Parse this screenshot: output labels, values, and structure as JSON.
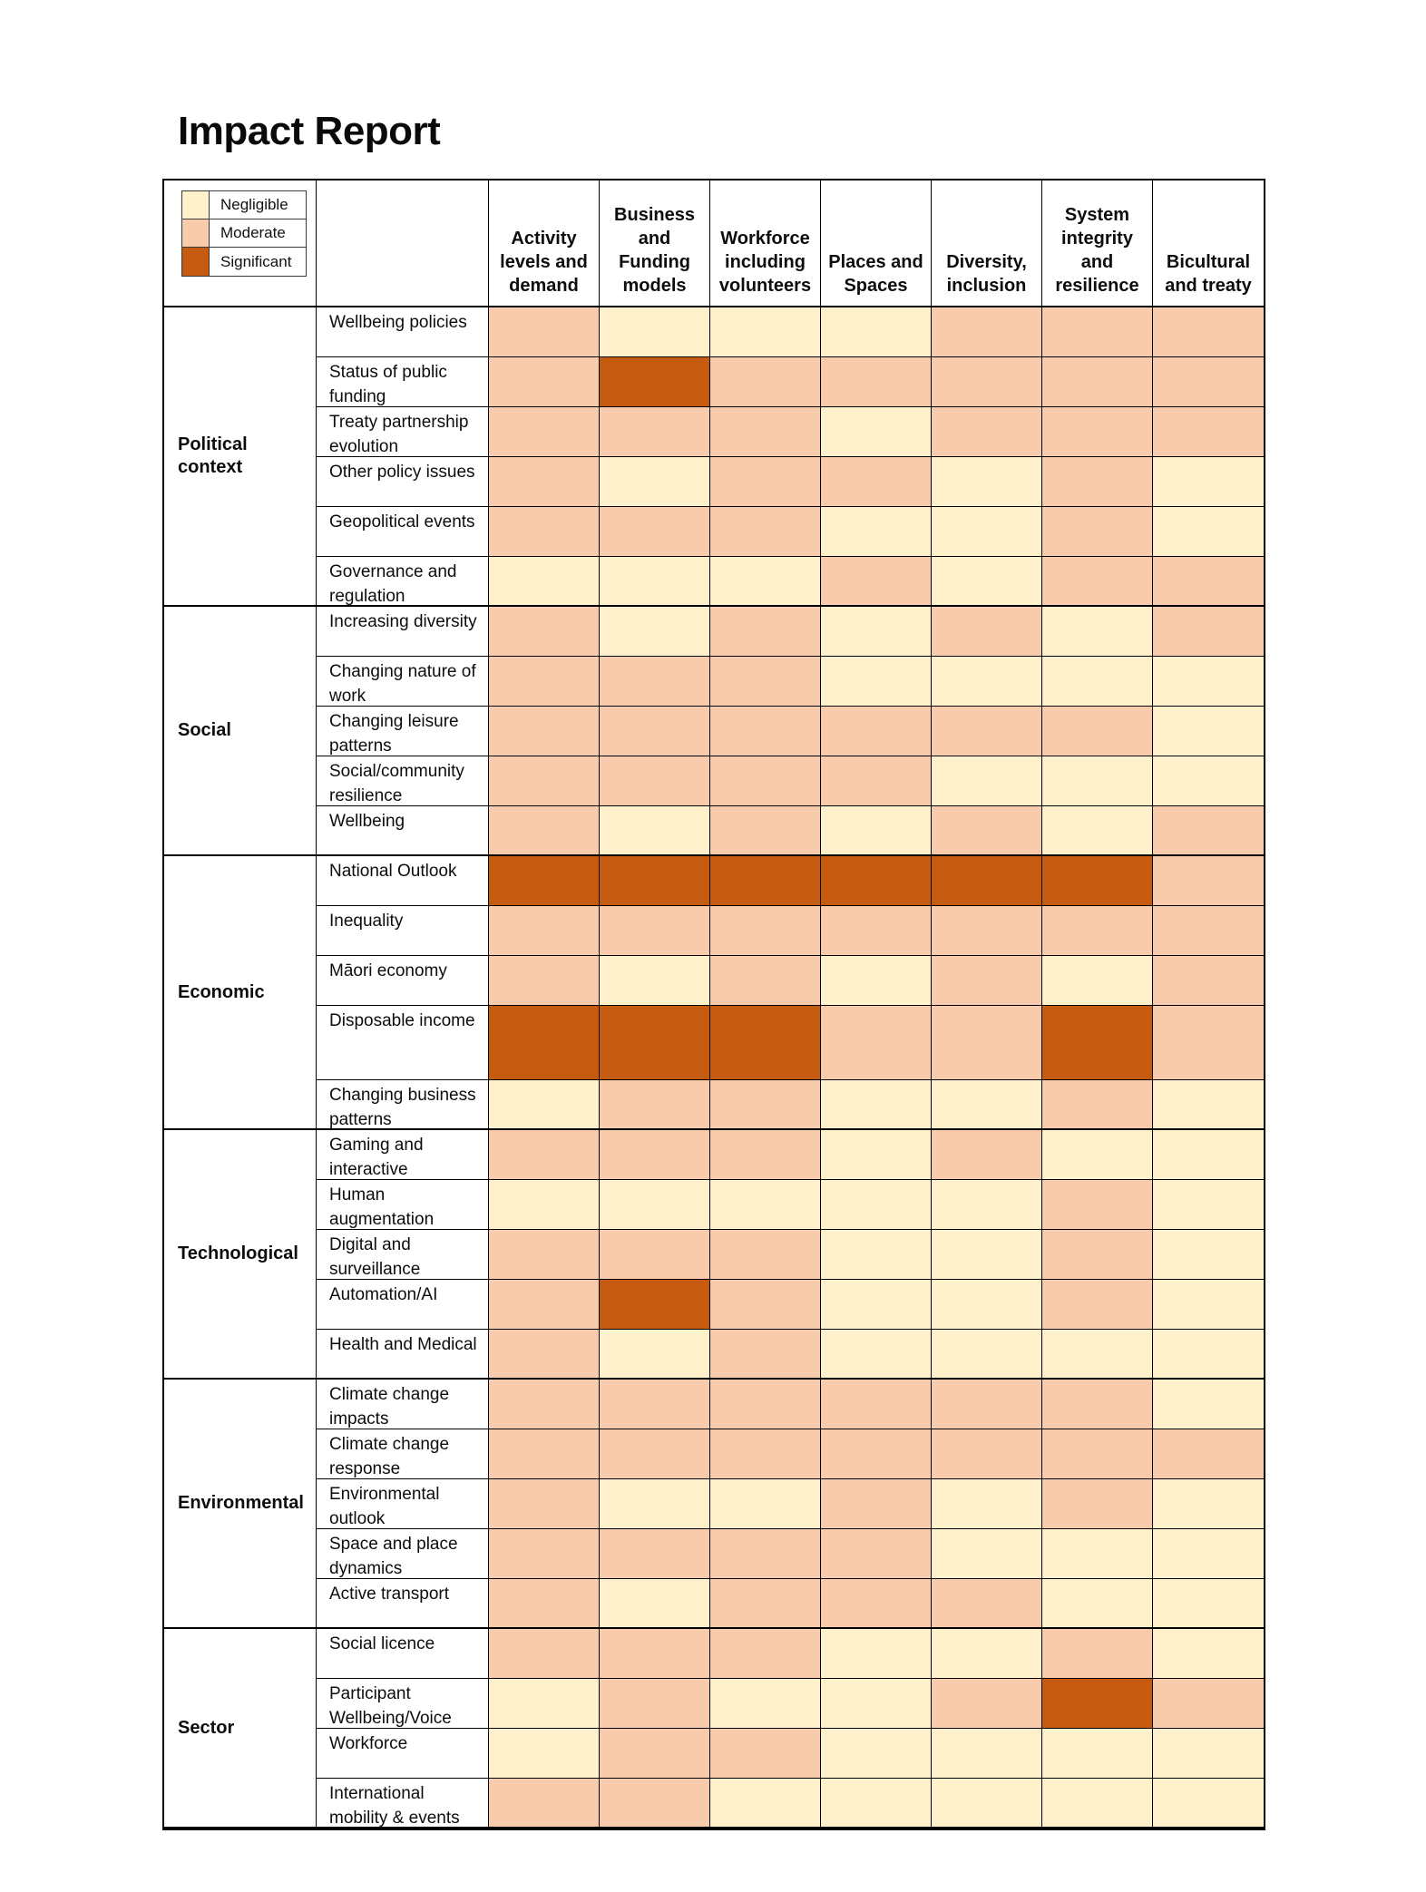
{
  "title": "Impact Report",
  "legend": {
    "items": [
      {
        "label": "Negligible",
        "color": "#FFF1CC"
      },
      {
        "label": "Moderate",
        "color": "#F8CBAD"
      },
      {
        "label": "Significant",
        "color": "#C55A11"
      }
    ]
  },
  "chart_data": {
    "type": "heatmap",
    "title": "Impact Report",
    "legend_position": "top-left",
    "scale": [
      "Negligible",
      "Moderate",
      "Significant"
    ],
    "palette": {
      "Negligible": "#FFF1CC",
      "Moderate": "#F8CBAD",
      "Significant": "#C55A11"
    },
    "columns": [
      "Activity levels and demand",
      "Business and Funding models",
      "Workforce including volunteers",
      "Places and Spaces",
      "Diversity, inclusion",
      "System integrity and resilience",
      "Bicultural and treaty"
    ],
    "row_groups": [
      {
        "label": "Political context",
        "rows": [
          {
            "label": "Wellbeing policies",
            "values": [
              "Moderate",
              "Negligible",
              "Negligible",
              "Negligible",
              "Moderate",
              "Moderate",
              "Moderate"
            ]
          },
          {
            "label": "Status of public funding",
            "values": [
              "Moderate",
              "Significant",
              "Moderate",
              "Moderate",
              "Moderate",
              "Moderate",
              "Moderate"
            ]
          },
          {
            "label": "Treaty partnership evolution",
            "values": [
              "Moderate",
              "Moderate",
              "Moderate",
              "Negligible",
              "Moderate",
              "Moderate",
              "Moderate"
            ]
          },
          {
            "label": "Other policy issues",
            "values": [
              "Moderate",
              "Negligible",
              "Moderate",
              "Moderate",
              "Negligible",
              "Moderate",
              "Negligible"
            ]
          },
          {
            "label": "Geopolitical events",
            "values": [
              "Moderate",
              "Moderate",
              "Moderate",
              "Negligible",
              "Negligible",
              "Moderate",
              "Negligible"
            ]
          },
          {
            "label": "Governance and regulation",
            "values": [
              "Negligible",
              "Negligible",
              "Negligible",
              "Moderate",
              "Negligible",
              "Moderate",
              "Moderate"
            ]
          }
        ]
      },
      {
        "label": "Social",
        "rows": [
          {
            "label": "Increasing diversity",
            "values": [
              "Moderate",
              "Negligible",
              "Moderate",
              "Negligible",
              "Moderate",
              "Negligible",
              "Moderate"
            ]
          },
          {
            "label": "Changing nature of work",
            "values": [
              "Moderate",
              "Moderate",
              "Moderate",
              "Negligible",
              "Negligible",
              "Negligible",
              "Negligible"
            ]
          },
          {
            "label": "Changing leisure patterns",
            "values": [
              "Moderate",
              "Moderate",
              "Moderate",
              "Moderate",
              "Moderate",
              "Moderate",
              "Negligible"
            ]
          },
          {
            "label": "Social/community resilience",
            "values": [
              "Moderate",
              "Moderate",
              "Moderate",
              "Moderate",
              "Negligible",
              "Negligible",
              "Negligible"
            ]
          },
          {
            "label": "Wellbeing",
            "values": [
              "Moderate",
              "Negligible",
              "Moderate",
              "Negligible",
              "Moderate",
              "Negligible",
              "Moderate"
            ]
          }
        ]
      },
      {
        "label": "Economic",
        "rows": [
          {
            "label": "National Outlook",
            "values": [
              "Significant",
              "Significant",
              "Significant",
              "Significant",
              "Significant",
              "Significant",
              "Moderate"
            ]
          },
          {
            "label": "Inequality",
            "values": [
              "Moderate",
              "Moderate",
              "Moderate",
              "Moderate",
              "Moderate",
              "Moderate",
              "Moderate"
            ]
          },
          {
            "label": "Māori economy",
            "values": [
              "Moderate",
              "Negligible",
              "Moderate",
              "Negligible",
              "Moderate",
              "Negligible",
              "Moderate"
            ]
          },
          {
            "label": "Disposable income",
            "values": [
              "Significant",
              "Significant",
              "Significant",
              "Moderate",
              "Moderate",
              "Significant",
              "Moderate"
            ]
          },
          {
            "label": "Changing business patterns",
            "values": [
              "Negligible",
              "Moderate",
              "Moderate",
              "Negligible",
              "Negligible",
              "Moderate",
              "Negligible"
            ]
          }
        ]
      },
      {
        "label": "Technological",
        "rows": [
          {
            "label": "Gaming and interactive",
            "values": [
              "Moderate",
              "Moderate",
              "Moderate",
              "Negligible",
              "Moderate",
              "Negligible",
              "Negligible"
            ]
          },
          {
            "label": "Human augmentation",
            "values": [
              "Negligible",
              "Negligible",
              "Negligible",
              "Negligible",
              "Negligible",
              "Moderate",
              "Negligible"
            ]
          },
          {
            "label": "Digital and surveillance",
            "values": [
              "Moderate",
              "Moderate",
              "Moderate",
              "Negligible",
              "Negligible",
              "Moderate",
              "Negligible"
            ]
          },
          {
            "label": "Automation/AI",
            "values": [
              "Moderate",
              "Significant",
              "Moderate",
              "Negligible",
              "Negligible",
              "Moderate",
              "Negligible"
            ]
          },
          {
            "label": "Health and Medical",
            "values": [
              "Moderate",
              "Negligible",
              "Moderate",
              "Negligible",
              "Negligible",
              "Negligible",
              "Negligible"
            ]
          }
        ]
      },
      {
        "label": "Environmental",
        "rows": [
          {
            "label": "Climate change impacts",
            "values": [
              "Moderate",
              "Moderate",
              "Moderate",
              "Moderate",
              "Moderate",
              "Moderate",
              "Negligible"
            ]
          },
          {
            "label": "Climate change response",
            "values": [
              "Moderate",
              "Moderate",
              "Moderate",
              "Moderate",
              "Moderate",
              "Moderate",
              "Moderate"
            ]
          },
          {
            "label": "Environmental outlook",
            "values": [
              "Moderate",
              "Negligible",
              "Negligible",
              "Moderate",
              "Negligible",
              "Moderate",
              "Negligible"
            ]
          },
          {
            "label": "Space and place dynamics",
            "values": [
              "Moderate",
              "Moderate",
              "Moderate",
              "Moderate",
              "Negligible",
              "Negligible",
              "Negligible"
            ]
          },
          {
            "label": "Active transport",
            "values": [
              "Moderate",
              "Negligible",
              "Moderate",
              "Moderate",
              "Moderate",
              "Negligible",
              "Negligible"
            ]
          }
        ]
      },
      {
        "label": "Sector",
        "rows": [
          {
            "label": "Social licence",
            "values": [
              "Moderate",
              "Moderate",
              "Moderate",
              "Negligible",
              "Negligible",
              "Moderate",
              "Negligible"
            ]
          },
          {
            "label": "Participant Wellbeing/Voice",
            "values": [
              "Negligible",
              "Moderate",
              "Negligible",
              "Negligible",
              "Moderate",
              "Significant",
              "Moderate"
            ]
          },
          {
            "label": "Workforce",
            "values": [
              "Negligible",
              "Moderate",
              "Moderate",
              "Negligible",
              "Negligible",
              "Negligible",
              "Negligible"
            ]
          },
          {
            "label": "International mobility & events",
            "values": [
              "Moderate",
              "Moderate",
              "Negligible",
              "Negligible",
              "Negligible",
              "Negligible",
              "Negligible"
            ]
          }
        ]
      }
    ]
  }
}
